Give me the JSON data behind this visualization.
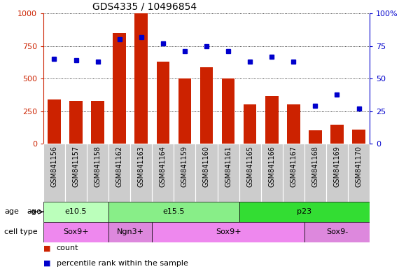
{
  "title": "GDS4335 / 10496854",
  "samples": [
    "GSM841156",
    "GSM841157",
    "GSM841158",
    "GSM841162",
    "GSM841163",
    "GSM841164",
    "GSM841159",
    "GSM841160",
    "GSM841161",
    "GSM841165",
    "GSM841166",
    "GSM841167",
    "GSM841168",
    "GSM841169",
    "GSM841170"
  ],
  "counts": [
    340,
    330,
    330,
    850,
    1000,
    630,
    500,
    590,
    500,
    305,
    370,
    305,
    105,
    145,
    110
  ],
  "percentiles": [
    65,
    64,
    63,
    80,
    82,
    77,
    71,
    75,
    71,
    63,
    67,
    63,
    29,
    38,
    27
  ],
  "ylim_left": [
    0,
    1000
  ],
  "ylim_right": [
    0,
    100
  ],
  "yticks_left": [
    0,
    250,
    500,
    750,
    1000
  ],
  "yticks_right": [
    0,
    25,
    50,
    75,
    100
  ],
  "bar_color": "#CC2200",
  "dot_color": "#0000CC",
  "age_groups": [
    {
      "label": "e10.5",
      "start": 0,
      "end": 3,
      "color": "#bbffbb"
    },
    {
      "label": "e15.5",
      "start": 3,
      "end": 9,
      "color": "#88ee88"
    },
    {
      "label": "p23",
      "start": 9,
      "end": 15,
      "color": "#33dd33"
    }
  ],
  "cell_type_groups": [
    {
      "label": "Sox9+",
      "start": 0,
      "end": 3,
      "color": "#ee88ee"
    },
    {
      "label": "Ngn3+",
      "start": 3,
      "end": 5,
      "color": "#dd88dd"
    },
    {
      "label": "Sox9+",
      "start": 5,
      "end": 12,
      "color": "#ee88ee"
    },
    {
      "label": "Sox9-",
      "start": 12,
      "end": 15,
      "color": "#dd88dd"
    }
  ],
  "legend_count_color": "#CC2200",
  "legend_dot_color": "#0000CC",
  "xticklabel_bg": "#cccccc",
  "age_label": "age",
  "cell_type_label": "cell type"
}
